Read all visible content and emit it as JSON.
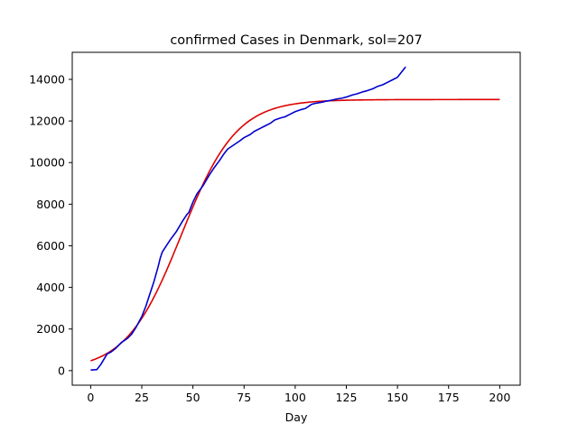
{
  "chart_data": {
    "type": "line",
    "title": "confirmed Cases in Denmark, sol=207",
    "xlabel": "Day",
    "ylabel": "",
    "xlim": [
      -9,
      210
    ],
    "ylim": [
      -700,
      15300
    ],
    "xticks": [
      0,
      25,
      50,
      75,
      100,
      125,
      150,
      175,
      200
    ],
    "yticks": [
      0,
      2000,
      4000,
      6000,
      8000,
      10000,
      12000,
      14000
    ],
    "grid": false,
    "legend": "none",
    "series": [
      {
        "color": "#0000cc",
        "points": [
          [
            0,
            30
          ],
          [
            3,
            50
          ],
          [
            5,
            300
          ],
          [
            8,
            800
          ],
          [
            10,
            900
          ],
          [
            12,
            1050
          ],
          [
            15,
            1350
          ],
          [
            18,
            1550
          ],
          [
            20,
            1750
          ],
          [
            22,
            2050
          ],
          [
            25,
            2600
          ],
          [
            27,
            3100
          ],
          [
            29,
            3700
          ],
          [
            31,
            4300
          ],
          [
            33,
            5000
          ],
          [
            34,
            5400
          ],
          [
            35,
            5700
          ],
          [
            37,
            6000
          ],
          [
            39,
            6300
          ],
          [
            42,
            6700
          ],
          [
            45,
            7200
          ],
          [
            47,
            7500
          ],
          [
            48,
            7600
          ],
          [
            50,
            8100
          ],
          [
            52,
            8500
          ],
          [
            55,
            8900
          ],
          [
            58,
            9400
          ],
          [
            60,
            9700
          ],
          [
            63,
            10100
          ],
          [
            65,
            10400
          ],
          [
            67,
            10650
          ],
          [
            70,
            10850
          ],
          [
            73,
            11050
          ],
          [
            75,
            11200
          ],
          [
            78,
            11350
          ],
          [
            80,
            11500
          ],
          [
            83,
            11650
          ],
          [
            85,
            11750
          ],
          [
            88,
            11900
          ],
          [
            90,
            12050
          ],
          [
            93,
            12150
          ],
          [
            95,
            12200
          ],
          [
            98,
            12350
          ],
          [
            100,
            12450
          ],
          [
            103,
            12550
          ],
          [
            105,
            12600
          ],
          [
            108,
            12800
          ],
          [
            110,
            12850
          ],
          [
            113,
            12900
          ],
          [
            115,
            12950
          ],
          [
            118,
            13000
          ],
          [
            120,
            13050
          ],
          [
            123,
            13100
          ],
          [
            125,
            13150
          ],
          [
            128,
            13250
          ],
          [
            130,
            13300
          ],
          [
            133,
            13400
          ],
          [
            135,
            13450
          ],
          [
            138,
            13550
          ],
          [
            140,
            13650
          ],
          [
            143,
            13750
          ],
          [
            145,
            13850
          ],
          [
            148,
            14000
          ],
          [
            150,
            14100
          ],
          [
            152,
            14350
          ],
          [
            154,
            14600
          ]
        ]
      },
      {
        "color": "#dd0000",
        "model": {
          "L": 13030,
          "k": 0.0741,
          "x0": 44.3
        },
        "x_range": [
          0,
          200
        ]
      }
    ]
  }
}
